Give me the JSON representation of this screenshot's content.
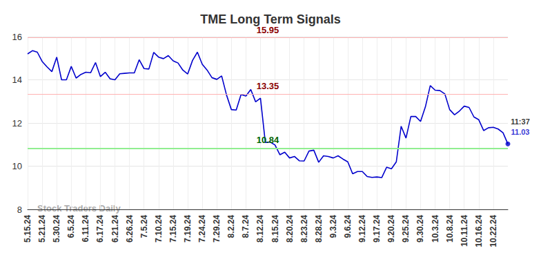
{
  "chart_data": {
    "type": "line",
    "title": "TME Long Term Signals",
    "categories": [
      "5.15.24",
      null,
      null,
      "5.21.24",
      null,
      null,
      "5.30.24",
      null,
      null,
      "6.5.24",
      null,
      null,
      "6.11.24",
      null,
      null,
      "6.17.24",
      null,
      null,
      "6.21.24",
      null,
      null,
      "6.26.24",
      null,
      null,
      "7.5.24",
      null,
      null,
      "7.10.24",
      null,
      null,
      "7.15.24",
      null,
      null,
      "7.19.24",
      null,
      null,
      "7.24.24",
      null,
      null,
      "7.29.24",
      null,
      null,
      "8.2.24",
      null,
      null,
      "8.7.24",
      null,
      null,
      "8.12.24",
      null,
      null,
      "8.15.24",
      null,
      null,
      "8.20.24",
      null,
      null,
      "8.23.24",
      null,
      null,
      "8.28.24",
      null,
      null,
      "9.3.24",
      null,
      null,
      "9.6.24",
      null,
      null,
      "9.12.24",
      null,
      null,
      "9.17.24",
      null,
      null,
      "9.20.24",
      null,
      null,
      "9.25.24",
      null,
      null,
      "9.30.24",
      null,
      null,
      "10.3.24",
      null,
      null,
      "10.8.24",
      null,
      null,
      "10.11.24",
      null,
      null,
      "10.16.24",
      null,
      null,
      "10.22.24",
      null,
      null,
      null
    ],
    "values": [
      15.2,
      15.35,
      15.28,
      14.85,
      14.6,
      14.38,
      15.05,
      14.0,
      14.0,
      14.62,
      14.08,
      14.25,
      14.35,
      14.33,
      14.8,
      14.15,
      14.35,
      14.05,
      14.0,
      14.28,
      14.3,
      14.32,
      14.32,
      14.93,
      14.52,
      14.5,
      15.27,
      15.05,
      14.98,
      15.12,
      14.88,
      14.78,
      14.45,
      14.27,
      14.9,
      15.28,
      14.72,
      14.45,
      14.1,
      14.02,
      14.18,
      13.3,
      12.62,
      12.6,
      13.32,
      13.25,
      13.55,
      12.98,
      13.15,
      11.1,
      11.12,
      10.98,
      10.53,
      10.65,
      10.38,
      10.45,
      10.25,
      10.24,
      10.7,
      10.74,
      10.18,
      10.48,
      10.45,
      10.38,
      10.48,
      10.33,
      10.2,
      9.65,
      9.75,
      9.75,
      9.52,
      9.48,
      9.5,
      9.47,
      9.95,
      9.88,
      10.2,
      11.85,
      11.3,
      12.3,
      12.3,
      12.07,
      12.75,
      13.73,
      13.52,
      13.5,
      13.35,
      12.62,
      12.38,
      12.55,
      12.78,
      12.72,
      12.28,
      12.15,
      11.65,
      11.78,
      11.8,
      11.72,
      11.55,
      11.03
    ],
    "color": "#0000cc",
    "ylim": [
      8,
      16
    ],
    "yticks": [
      8,
      10,
      12,
      14,
      16
    ],
    "grid": true,
    "reference_lines": [
      {
        "value": 15.95,
        "label": "15.95",
        "color": "#8b0000"
      },
      {
        "value": 13.35,
        "label": "13.35",
        "color": "#8b0000"
      },
      {
        "value": 10.84,
        "label": "10.84",
        "color": "#006400"
      }
    ],
    "last_point_label": {
      "time": "11:37",
      "value_label": "11.03"
    },
    "watermark": "Stock Traders Daily"
  }
}
